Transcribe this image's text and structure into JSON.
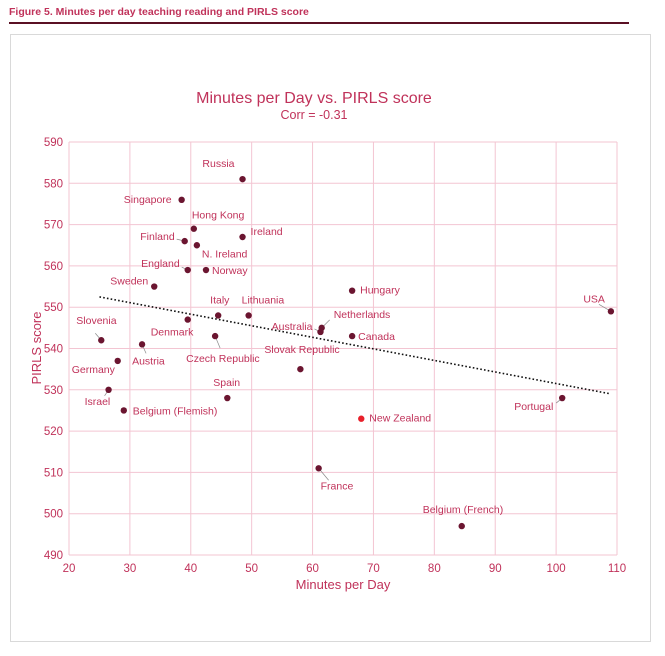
{
  "figure": {
    "title": "Figure 5. Minutes per day teaching reading and PIRLS score"
  },
  "colors": {
    "accent": "#c0325a",
    "point": "#6b1530",
    "highlight": "#e8202a",
    "grid": "#f3c5d2",
    "rule": "#5a1024"
  },
  "chart_data": {
    "type": "scatter",
    "title": "Minutes per Day vs. PIRLS score",
    "subtitle": "Corr = -0.31",
    "xlabel": "Minutes per Day",
    "ylabel": "PIRLS score",
    "xlim": [
      20,
      110
    ],
    "ylim": [
      490,
      590
    ],
    "xticks": [
      20,
      30,
      40,
      50,
      60,
      70,
      80,
      90,
      100,
      110
    ],
    "yticks": [
      490,
      500,
      510,
      520,
      530,
      540,
      550,
      560,
      570,
      580,
      590
    ],
    "grid": true,
    "trendline": {
      "style": "dotted",
      "x": [
        25,
        109
      ],
      "y": [
        552.5,
        529
      ]
    },
    "points": [
      {
        "label": "Russia",
        "x": 48.5,
        "y": 581
      },
      {
        "label": "Singapore",
        "x": 38.5,
        "y": 576
      },
      {
        "label": "Hong Kong",
        "x": 40.5,
        "y": 569
      },
      {
        "label": "Ireland",
        "x": 48.5,
        "y": 567
      },
      {
        "label": "Finland",
        "x": 39,
        "y": 566
      },
      {
        "label": "N. Ireland",
        "x": 41,
        "y": 565
      },
      {
        "label": "England",
        "x": 39.5,
        "y": 559
      },
      {
        "label": "Norway",
        "x": 42.5,
        "y": 559
      },
      {
        "label": "Sweden",
        "x": 34,
        "y": 555
      },
      {
        "label": "Hungary",
        "x": 66.5,
        "y": 554
      },
      {
        "label": "USA",
        "x": 109,
        "y": 549
      },
      {
        "label": "Italy",
        "x": 44.5,
        "y": 548
      },
      {
        "label": "Lithuania",
        "x": 49.5,
        "y": 548
      },
      {
        "label": "Denmark",
        "x": 39.5,
        "y": 547
      },
      {
        "label": "Netherlands",
        "x": 61.5,
        "y": 545
      },
      {
        "label": "Australia",
        "x": 61.3,
        "y": 544
      },
      {
        "label": "Canada",
        "x": 66.5,
        "y": 543
      },
      {
        "label": "Czech Republic",
        "x": 44,
        "y": 543
      },
      {
        "label": "Slovenia",
        "x": 25.3,
        "y": 542
      },
      {
        "label": "Austria",
        "x": 32,
        "y": 541
      },
      {
        "label": "Germany",
        "x": 28,
        "y": 537
      },
      {
        "label": "Slovak Republic",
        "x": 58,
        "y": 535
      },
      {
        "label": "Israel",
        "x": 26.5,
        "y": 530
      },
      {
        "label": "Spain",
        "x": 46,
        "y": 528
      },
      {
        "label": "Portugal",
        "x": 101,
        "y": 528
      },
      {
        "label": "Belgium (Flemish)",
        "x": 29,
        "y": 525
      },
      {
        "label": "New Zealand",
        "x": 68,
        "y": 523,
        "highlight": true
      },
      {
        "label": "France",
        "x": 61,
        "y": 511
      },
      {
        "label": "Belgium (French)",
        "x": 84.5,
        "y": 497
      }
    ]
  }
}
